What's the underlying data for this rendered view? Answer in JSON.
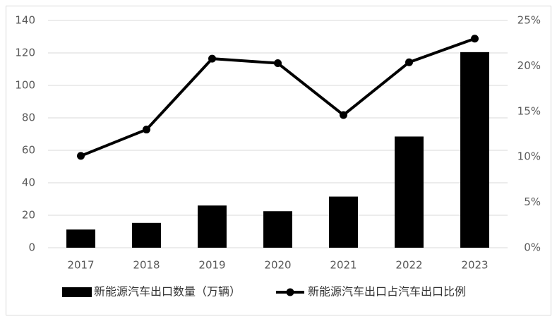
{
  "chart_data": {
    "type": "combo",
    "categories": [
      "2017",
      "2018",
      "2019",
      "2020",
      "2021",
      "2022",
      "2023"
    ],
    "series": [
      {
        "name": "新能源汽车出口数量（万辆）",
        "type": "bar",
        "color": "#000000",
        "values": [
          11.2,
          15.3,
          26,
          22.5,
          31.5,
          68.5,
          120.5
        ]
      },
      {
        "name": "新能源汽车出口占汽车出口比例",
        "type": "line",
        "color": "#000000",
        "axis": "y2",
        "values": [
          10.1,
          13.0,
          20.8,
          20.3,
          14.6,
          20.4,
          23.0
        ]
      }
    ],
    "ylim": [
      0,
      140
    ],
    "yticks": [
      0,
      20,
      40,
      60,
      80,
      100,
      120,
      140
    ],
    "y2lim": [
      0,
      25
    ],
    "y2ticks": [
      {
        "value": 0,
        "label": "0%"
      },
      {
        "value": 5,
        "label": "5%"
      },
      {
        "value": 10,
        "label": "10%"
      },
      {
        "value": 15,
        "label": "15%"
      },
      {
        "value": 20,
        "label": "20%"
      },
      {
        "value": 25,
        "label": "25%"
      }
    ],
    "grid": true,
    "legend": "bottom"
  }
}
